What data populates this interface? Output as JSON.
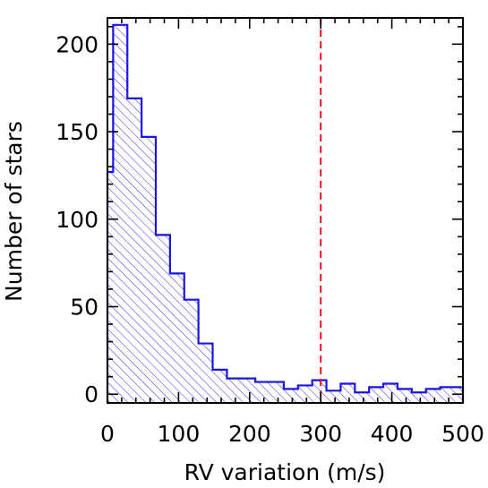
{
  "chart_data": {
    "type": "bar",
    "subtype": "histogram",
    "title": "",
    "xlabel": "RV variation (m/s)",
    "ylabel": "Number of stars",
    "xlim": [
      0,
      500
    ],
    "ylim": [
      -5,
      215
    ],
    "x_ticks": [
      {
        "value": 0,
        "label": "0"
      },
      {
        "value": 100,
        "label": "100"
      },
      {
        "value": 200,
        "label": "200"
      },
      {
        "value": 300,
        "label": "300"
      },
      {
        "value": 400,
        "label": "400"
      },
      {
        "value": 500,
        "label": "500"
      }
    ],
    "y_ticks": [
      {
        "value": 0,
        "label": "0"
      },
      {
        "value": 50,
        "label": "50"
      },
      {
        "value": 100,
        "label": "100"
      },
      {
        "value": 150,
        "label": "150"
      },
      {
        "value": 200,
        "label": "200"
      }
    ],
    "bin_width": 16.6,
    "bins": [
      {
        "x0": 0,
        "x1": 8,
        "value": 127
      },
      {
        "x0": 8,
        "x1": 28,
        "value": 211
      },
      {
        "x0": 28,
        "x1": 48,
        "value": 169
      },
      {
        "x0": 48,
        "x1": 68,
        "value": 147
      },
      {
        "x0": 68,
        "x1": 88,
        "value": 91
      },
      {
        "x0": 88,
        "x1": 108,
        "value": 69
      },
      {
        "x0": 108,
        "x1": 128,
        "value": 54
      },
      {
        "x0": 128,
        "x1": 148,
        "value": 29
      },
      {
        "x0": 148,
        "x1": 168,
        "value": 14
      },
      {
        "x0": 168,
        "x1": 208,
        "value": 9
      },
      {
        "x0": 208,
        "x1": 248,
        "value": 7
      },
      {
        "x0": 248,
        "x1": 268,
        "value": 3
      },
      {
        "x0": 268,
        "x1": 288,
        "value": 5
      },
      {
        "x0": 288,
        "x1": 308,
        "value": 8
      },
      {
        "x0": 308,
        "x1": 328,
        "value": 2
      },
      {
        "x0": 328,
        "x1": 348,
        "value": 6
      },
      {
        "x0": 348,
        "x1": 368,
        "value": 1
      },
      {
        "x0": 368,
        "x1": 388,
        "value": 4
      },
      {
        "x0": 388,
        "x1": 408,
        "value": 6
      },
      {
        "x0": 408,
        "x1": 428,
        "value": 3
      },
      {
        "x0": 428,
        "x1": 448,
        "value": 1
      },
      {
        "x0": 448,
        "x1": 468,
        "value": 3
      },
      {
        "x0": 468,
        "x1": 500,
        "value": 4
      }
    ],
    "reference_line": {
      "x": 300,
      "style": "dashed",
      "color": "#e8141e"
    },
    "colors": {
      "histogram": "#1a14e6",
      "hatch": "#1a14e6",
      "axes": "#000000"
    },
    "fill": "diagonal-hatch",
    "grid": false,
    "legend": "none"
  }
}
